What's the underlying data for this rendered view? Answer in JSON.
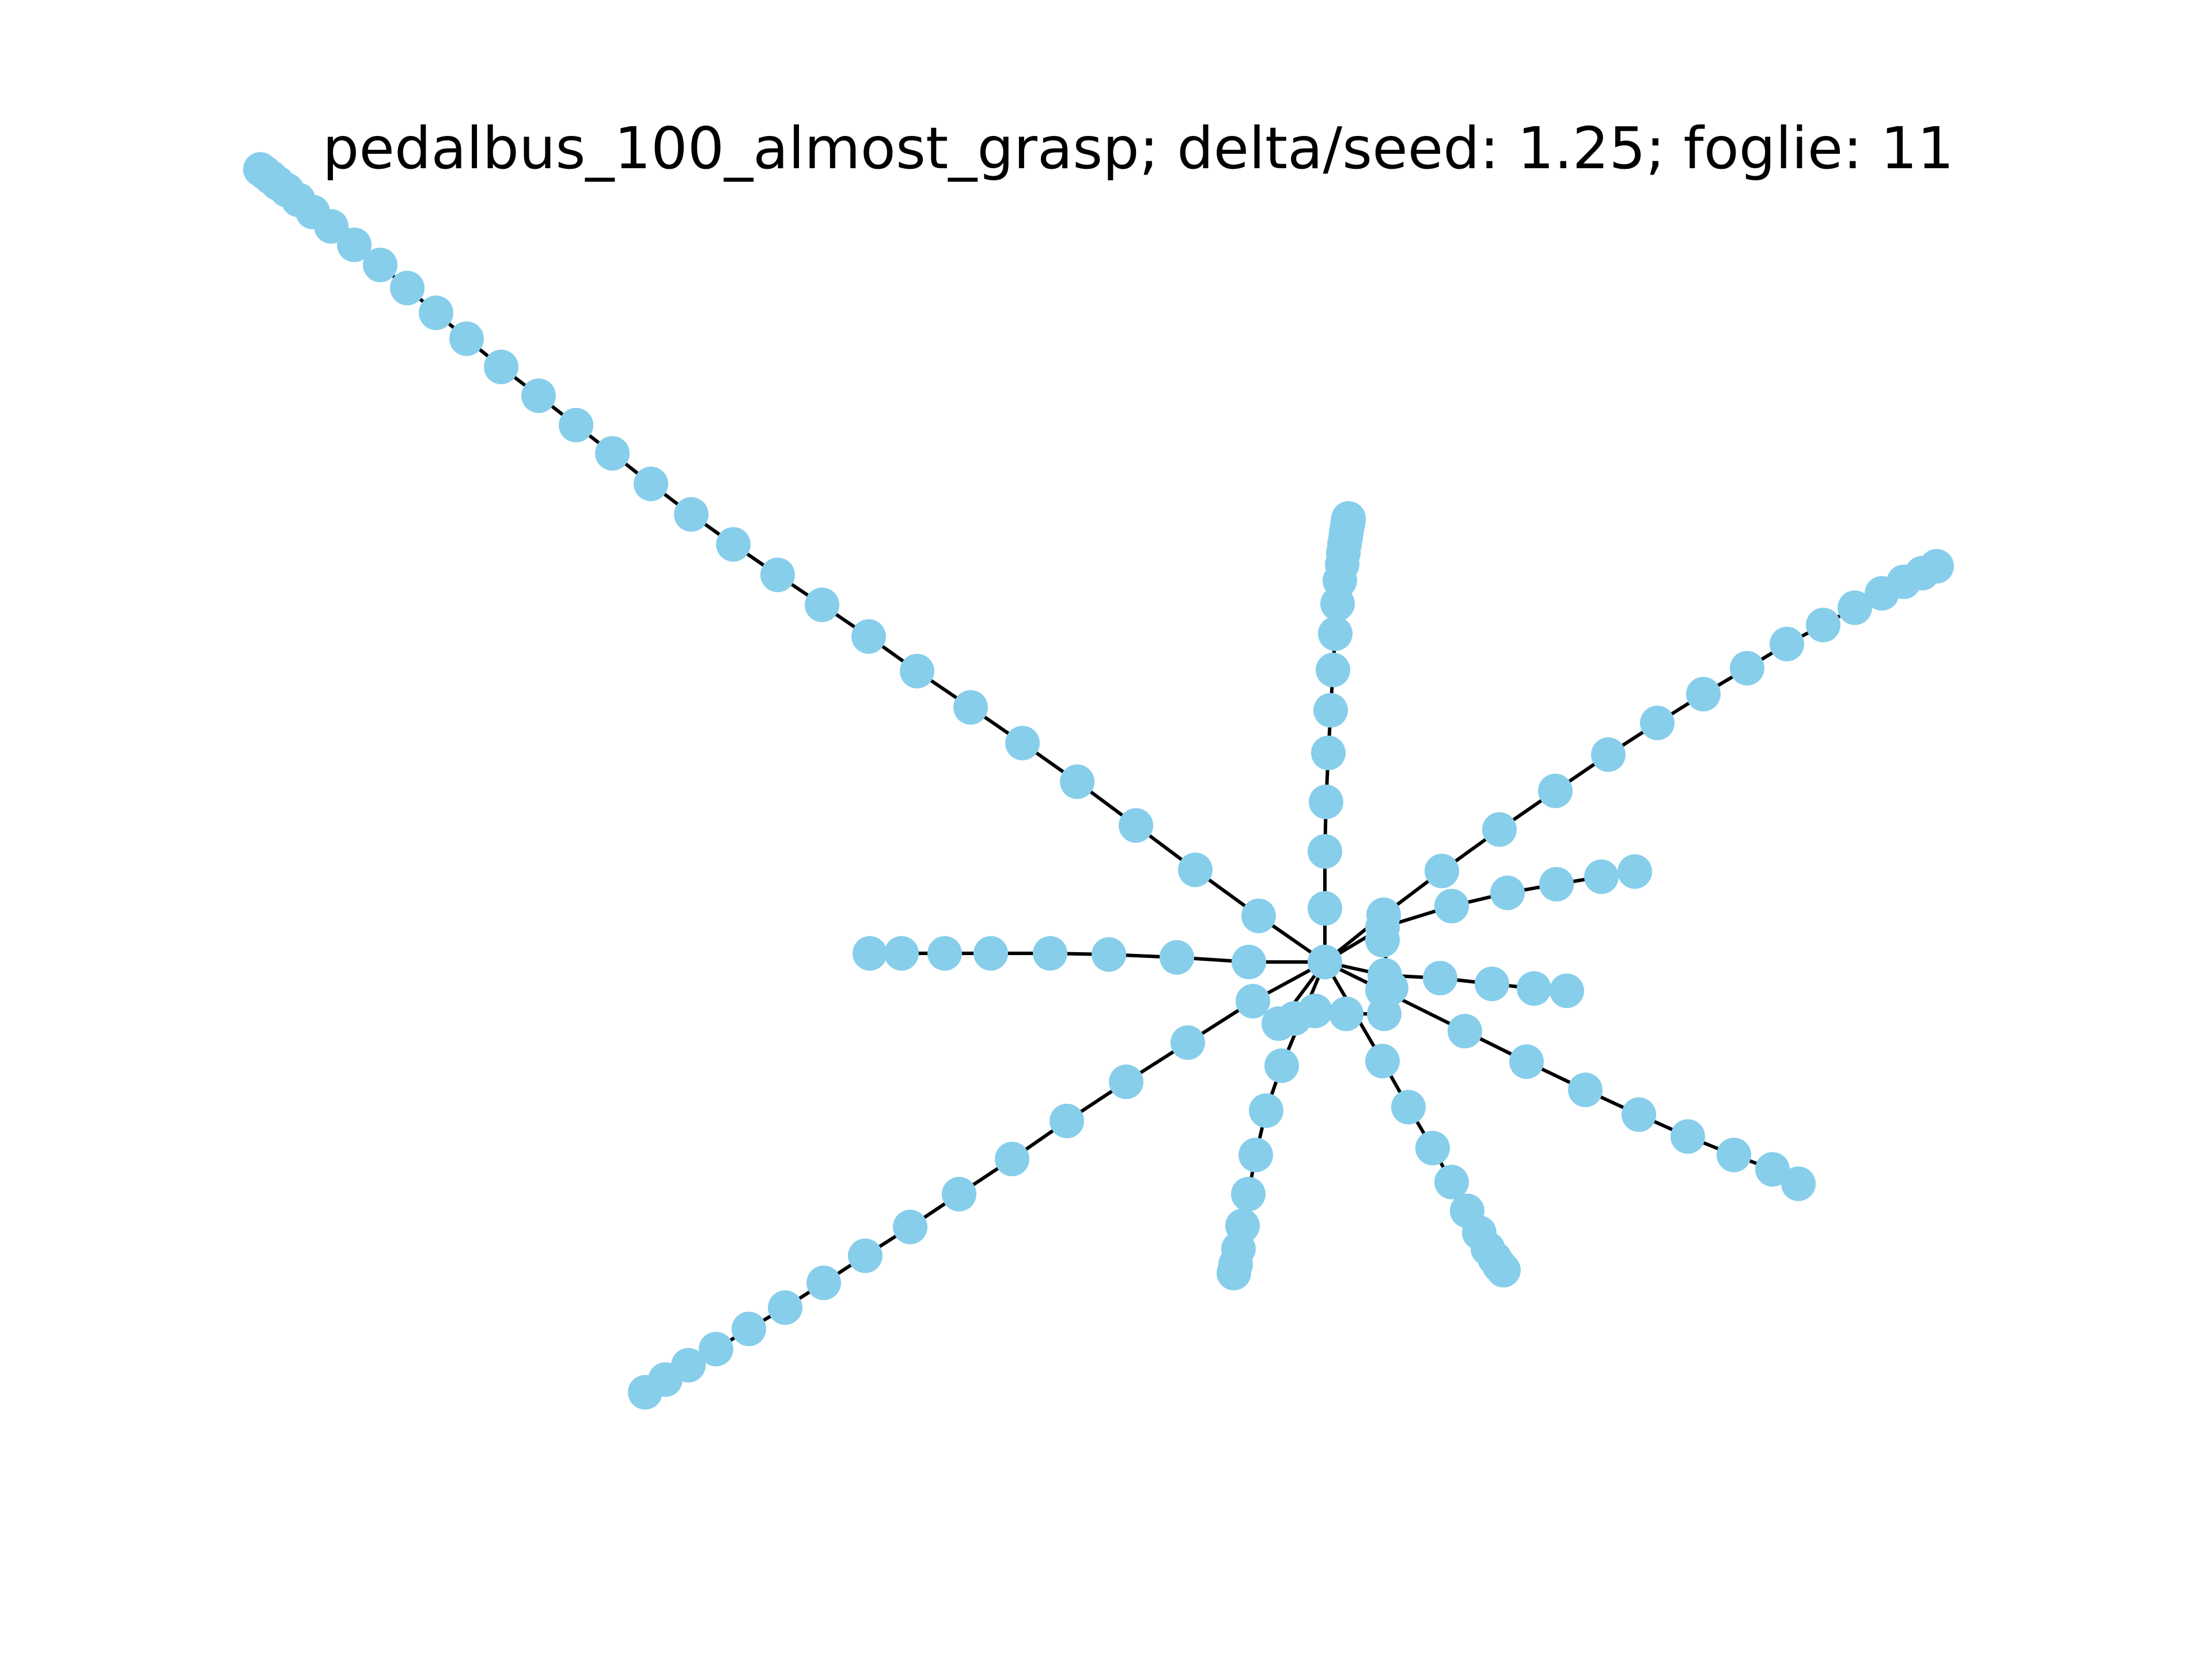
{
  "title": "pedalbus_100_almost_grasp; delta/seed: 1.25; foglie: 11",
  "colors": {
    "node_fill": "#87ceeb",
    "edge_stroke": "#000000",
    "background": "#ffffff",
    "title_text": "#000000"
  },
  "graph": {
    "node_count": 100,
    "leaf_count": 11,
    "hub_count": 1,
    "branch_lengths": [
      30,
      15,
      20,
      15,
      6,
      5,
      8,
      10,
      8,
      7,
      11
    ]
  }
}
